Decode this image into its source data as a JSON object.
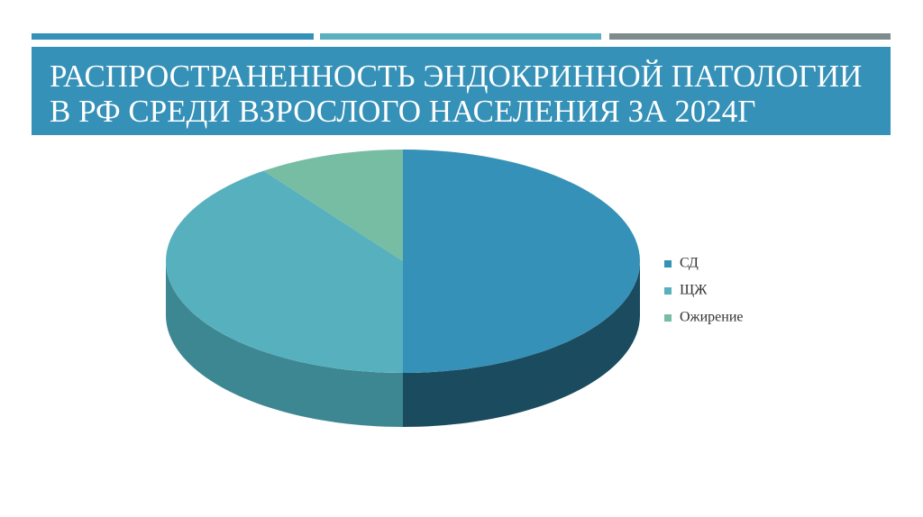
{
  "chart_data": {
    "type": "pie3d",
    "title_lines": [
      "РАСПРОСТРАНЕННОСТЬ ЭНДОКРИННОЙ ПАТОЛОГИИ",
      "В РФ СРЕДИ ВЗРОСЛОГО НАСЕЛЕНИЯ ЗА 2024Г"
    ],
    "categories": [
      "СД",
      "ЩЖ",
      "Ожирение"
    ],
    "values": [
      50,
      40,
      10
    ],
    "colors": [
      "#3591b7",
      "#57b0be",
      "#76bda4"
    ],
    "side_colors": [
      "#1b4b5f",
      "#3d8793",
      "#4f8f78"
    ],
    "legend": "right"
  }
}
